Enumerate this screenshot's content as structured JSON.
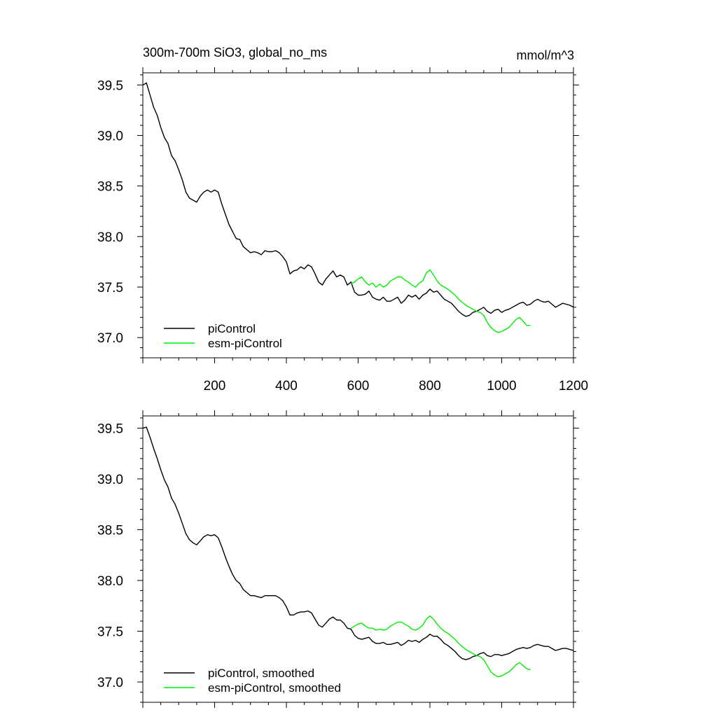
{
  "chart_data": [
    {
      "type": "line",
      "title": "300m-700m SiO3, global_no_ms",
      "units": "mmol/m^3",
      "xlabel": "",
      "ylabel": "",
      "xlim": [
        0,
        1200
      ],
      "ylim": [
        36.8,
        39.62
      ],
      "xticks": [
        200,
        400,
        600,
        800,
        1000,
        1200
      ],
      "xtick_labels": [
        "200",
        "400",
        "600",
        "800",
        "1000",
        "1200"
      ],
      "yticks": [
        37.0,
        37.5,
        38.0,
        38.5,
        39.0,
        39.5
      ],
      "ytick_labels": [
        "37.0",
        "37.5",
        "38.0",
        "38.5",
        "39.0",
        "39.5"
      ],
      "legend_position": "bottom-left",
      "series": [
        {
          "name": "piControl",
          "color": "#000000",
          "x": [
            1,
            10,
            20,
            30,
            40,
            50,
            60,
            70,
            80,
            90,
            100,
            110,
            120,
            130,
            140,
            150,
            160,
            170,
            180,
            190,
            200,
            210,
            220,
            230,
            240,
            250,
            260,
            270,
            280,
            290,
            300,
            310,
            320,
            330,
            340,
            350,
            360,
            370,
            380,
            390,
            400,
            410,
            420,
            430,
            440,
            450,
            460,
            470,
            480,
            490,
            500,
            510,
            520,
            530,
            540,
            550,
            560,
            570,
            580,
            590,
            600,
            610,
            620,
            630,
            640,
            650,
            660,
            670,
            680,
            690,
            700,
            710,
            720,
            730,
            740,
            750,
            760,
            770,
            780,
            790,
            800,
            810,
            820,
            830,
            840,
            850,
            860,
            870,
            880,
            890,
            900,
            910,
            920,
            930,
            940,
            950,
            960,
            970,
            980,
            990,
            1000,
            1010,
            1020,
            1030,
            1040,
            1050,
            1060,
            1070,
            1080,
            1090,
            1100,
            1110,
            1120,
            1130,
            1140,
            1150,
            1160,
            1170,
            1180,
            1190,
            1200
          ],
          "values": [
            39.5,
            39.52,
            39.4,
            39.28,
            39.2,
            39.08,
            38.98,
            38.92,
            38.8,
            38.75,
            38.66,
            38.56,
            38.44,
            38.38,
            38.36,
            38.34,
            38.4,
            38.44,
            38.46,
            38.44,
            38.46,
            38.44,
            38.32,
            38.22,
            38.12,
            38.05,
            37.98,
            37.97,
            37.9,
            37.87,
            37.84,
            37.85,
            37.84,
            37.82,
            37.86,
            37.85,
            37.85,
            37.86,
            37.84,
            37.8,
            37.75,
            37.63,
            37.66,
            37.67,
            37.7,
            37.68,
            37.72,
            37.7,
            37.63,
            37.55,
            37.52,
            37.58,
            37.62,
            37.66,
            37.6,
            37.62,
            37.6,
            37.52,
            37.55,
            37.45,
            37.42,
            37.42,
            37.43,
            37.46,
            37.4,
            37.38,
            37.37,
            37.4,
            37.36,
            37.36,
            37.38,
            37.4,
            37.34,
            37.37,
            37.42,
            37.4,
            37.42,
            37.38,
            37.42,
            37.44,
            37.48,
            37.45,
            37.46,
            37.42,
            37.38,
            37.36,
            37.34,
            37.3,
            37.26,
            37.23,
            37.21,
            37.22,
            37.25,
            37.26,
            37.28,
            37.3,
            37.26,
            37.24,
            37.27,
            37.28,
            37.25,
            37.27,
            37.28,
            37.3,
            37.32,
            37.34,
            37.35,
            37.32,
            37.33,
            37.36,
            37.38,
            37.36,
            37.35,
            37.36,
            37.33,
            37.3,
            37.32,
            37.34,
            37.33,
            37.32,
            37.3
          ]
        },
        {
          "name": "esm-piControl",
          "color": "#00ee00",
          "x": [
            580,
            590,
            600,
            610,
            620,
            630,
            640,
            650,
            660,
            670,
            680,
            690,
            700,
            710,
            720,
            730,
            740,
            750,
            760,
            770,
            780,
            790,
            800,
            810,
            820,
            830,
            840,
            850,
            860,
            870,
            880,
            890,
            900,
            910,
            920,
            930,
            940,
            950,
            960,
            970,
            980,
            990,
            1000,
            1010,
            1020,
            1030,
            1040,
            1050,
            1060,
            1070,
            1080
          ],
          "values": [
            37.53,
            37.55,
            37.58,
            37.6,
            37.55,
            37.52,
            37.54,
            37.5,
            37.53,
            37.5,
            37.52,
            37.56,
            37.58,
            37.6,
            37.6,
            37.57,
            37.55,
            37.52,
            37.5,
            37.54,
            37.56,
            37.64,
            37.67,
            37.62,
            37.56,
            37.52,
            37.5,
            37.48,
            37.45,
            37.42,
            37.38,
            37.35,
            37.32,
            37.3,
            37.28,
            37.26,
            37.25,
            37.22,
            37.15,
            37.1,
            37.07,
            37.05,
            37.06,
            37.08,
            37.1,
            37.14,
            37.18,
            37.2,
            37.16,
            37.12,
            37.12
          ]
        }
      ]
    },
    {
      "type": "line",
      "title": "",
      "xlabel": "",
      "ylabel": "",
      "xlim": [
        0,
        1200
      ],
      "ylim": [
        36.8,
        39.62
      ],
      "yticks": [
        37.0,
        37.5,
        38.0,
        38.5,
        39.0,
        39.5
      ],
      "ytick_labels": [
        "37.0",
        "37.5",
        "38.0",
        "38.5",
        "39.0",
        "39.5"
      ],
      "legend_position": "bottom-left",
      "series": [
        {
          "name": "piControl, smoothed",
          "color": "#000000",
          "x": [
            1,
            10,
            20,
            30,
            40,
            50,
            60,
            70,
            80,
            90,
            100,
            110,
            120,
            130,
            140,
            150,
            160,
            170,
            180,
            190,
            200,
            210,
            220,
            230,
            240,
            250,
            260,
            270,
            280,
            290,
            300,
            310,
            320,
            330,
            340,
            350,
            360,
            370,
            380,
            390,
            400,
            410,
            420,
            430,
            440,
            450,
            460,
            470,
            480,
            490,
            500,
            510,
            520,
            530,
            540,
            550,
            560,
            570,
            580,
            590,
            600,
            610,
            620,
            630,
            640,
            650,
            660,
            670,
            680,
            690,
            700,
            710,
            720,
            730,
            740,
            750,
            760,
            770,
            780,
            790,
            800,
            810,
            820,
            830,
            840,
            850,
            860,
            870,
            880,
            890,
            900,
            910,
            920,
            930,
            940,
            950,
            960,
            970,
            980,
            990,
            1000,
            1010,
            1020,
            1030,
            1040,
            1050,
            1060,
            1070,
            1080,
            1090,
            1100,
            1110,
            1120,
            1130,
            1140,
            1150,
            1160,
            1170,
            1180,
            1190,
            1200
          ],
          "values": [
            39.5,
            39.51,
            39.41,
            39.3,
            39.2,
            39.09,
            38.99,
            38.92,
            38.81,
            38.75,
            38.66,
            38.56,
            38.46,
            38.4,
            38.37,
            38.35,
            38.39,
            38.43,
            38.45,
            38.44,
            38.45,
            38.42,
            38.33,
            38.23,
            38.14,
            38.06,
            38.0,
            37.97,
            37.91,
            37.88,
            37.85,
            37.85,
            37.84,
            37.83,
            37.85,
            37.85,
            37.85,
            37.85,
            37.83,
            37.8,
            37.74,
            37.66,
            37.66,
            37.68,
            37.69,
            37.69,
            37.7,
            37.68,
            37.62,
            37.56,
            37.54,
            37.58,
            37.62,
            37.64,
            37.61,
            37.61,
            37.58,
            37.53,
            37.52,
            37.46,
            37.43,
            37.42,
            37.43,
            37.44,
            37.4,
            37.38,
            37.38,
            37.39,
            37.37,
            37.37,
            37.38,
            37.39,
            37.36,
            37.38,
            37.41,
            37.4,
            37.41,
            37.39,
            37.42,
            37.44,
            37.47,
            37.45,
            37.45,
            37.42,
            37.38,
            37.36,
            37.33,
            37.3,
            37.26,
            37.23,
            37.22,
            37.23,
            37.25,
            37.26,
            37.28,
            37.29,
            37.26,
            37.25,
            37.27,
            37.27,
            37.26,
            37.27,
            37.28,
            37.3,
            37.32,
            37.33,
            37.34,
            37.33,
            37.34,
            37.36,
            37.37,
            37.36,
            37.35,
            37.35,
            37.33,
            37.31,
            37.32,
            37.33,
            37.33,
            37.32,
            37.31
          ]
        },
        {
          "name": "esm-piControl, smoothed",
          "color": "#00ee00",
          "x": [
            580,
            590,
            600,
            610,
            620,
            630,
            640,
            650,
            660,
            670,
            680,
            690,
            700,
            710,
            720,
            730,
            740,
            750,
            760,
            770,
            780,
            790,
            800,
            810,
            820,
            830,
            840,
            850,
            860,
            870,
            880,
            890,
            900,
            910,
            920,
            930,
            940,
            950,
            960,
            970,
            980,
            990,
            1000,
            1010,
            1020,
            1030,
            1040,
            1050,
            1060,
            1070,
            1080
          ],
          "values": [
            37.53,
            37.55,
            37.57,
            37.58,
            37.55,
            37.53,
            37.53,
            37.51,
            37.52,
            37.51,
            37.52,
            37.55,
            37.57,
            37.59,
            37.59,
            37.57,
            37.55,
            37.52,
            37.51,
            37.53,
            37.56,
            37.62,
            37.65,
            37.62,
            37.57,
            37.53,
            37.5,
            37.48,
            37.45,
            37.42,
            37.38,
            37.35,
            37.32,
            37.3,
            37.28,
            37.26,
            37.25,
            37.22,
            37.16,
            37.1,
            37.07,
            37.05,
            37.06,
            37.08,
            37.1,
            37.13,
            37.17,
            37.19,
            37.16,
            37.13,
            37.12
          ]
        }
      ]
    }
  ]
}
